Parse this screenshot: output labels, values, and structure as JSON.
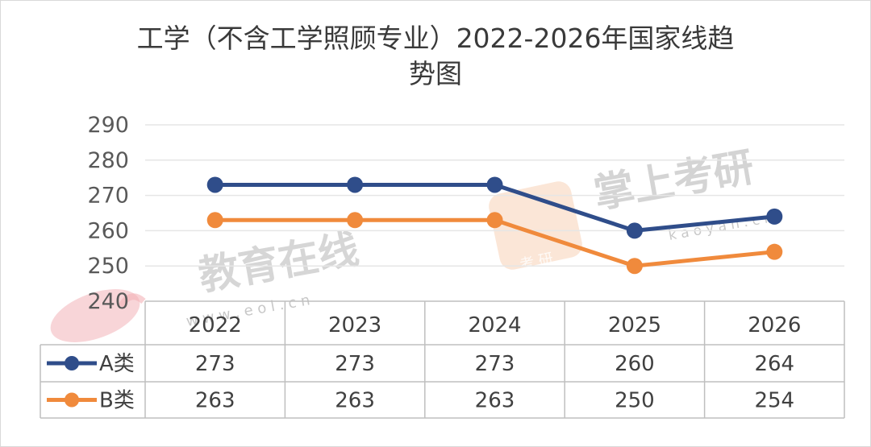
{
  "chart_data": {
    "type": "line",
    "title_line1": "工学（不含工学照顾专业）2022-2026年国家线趋",
    "title_line2": "势图",
    "categories": [
      "2022",
      "2023",
      "2024",
      "2025",
      "2026"
    ],
    "series": [
      {
        "name": "A类",
        "values": [
          273,
          273,
          273,
          260,
          264
        ],
        "color": "#2f4d8a"
      },
      {
        "name": "B类",
        "values": [
          263,
          263,
          263,
          250,
          254
        ],
        "color": "#f08a3c"
      }
    ],
    "yticks": [
      240,
      250,
      260,
      270,
      280,
      290
    ],
    "ylim": [
      240,
      290
    ],
    "grid": true,
    "legend": "data-table"
  },
  "watermarks": {
    "eol_text": "教育在线",
    "eol_url": "w w w . e o l . c n",
    "kaoyan_text": "掌上考研",
    "kaoyan_url": "k a o y a n . c n",
    "kaoyan_icon_text": "考 研"
  },
  "colors": {
    "axis_text": "#595959",
    "grid": "#e6e6e6",
    "table_border": "#bfbfbf"
  }
}
